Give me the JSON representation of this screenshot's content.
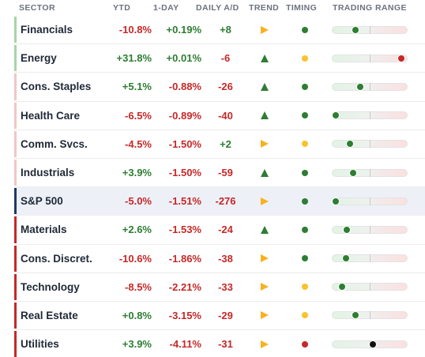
{
  "header": {
    "sector": "SECTOR",
    "ytd": "YTD",
    "one_day": "1-DAY",
    "daily_ad": "DAILY A/D",
    "trend": "TREND",
    "timing": "TIMING",
    "trading_range": "TRADING RANGE"
  },
  "colors": {
    "positive": "#2e7d32",
    "negative": "#c62828",
    "neutral_trend": "#f9b11f",
    "timing_green": "#2e7d32",
    "timing_yellow": "#f9c22e",
    "timing_red": "#c62828",
    "bar_green": "#a5d6a7",
    "bar_pink": "#f3c6c6",
    "bar_red": "#c62828",
    "bar_navy": "#1f3a5f"
  },
  "rows": [
    {
      "sector": "Financials",
      "ytd": "-10.8%",
      "ytd_dir": "neg",
      "day": "+0.19%",
      "day_dir": "pos",
      "ad": "+8",
      "ad_dir": "pos",
      "trend": "flat-right-arrow-icon",
      "timing": "green",
      "range_pos": 0.3,
      "range_color": "green",
      "bar": "green"
    },
    {
      "sector": "Energy",
      "ytd": "+31.8%",
      "ytd_dir": "pos",
      "day": "+0.01%",
      "day_dir": "pos",
      "ad": "-6",
      "ad_dir": "neg",
      "trend": "up-arrow-icon",
      "timing": "yellow",
      "range_pos": 0.91,
      "range_color": "red",
      "bar": "green"
    },
    {
      "sector": "Cons. Staples",
      "ytd": "+5.1%",
      "ytd_dir": "pos",
      "day": "-0.88%",
      "day_dir": "neg",
      "ad": "-26",
      "ad_dir": "neg",
      "trend": "up-arrow-icon",
      "timing": "green",
      "range_pos": 0.36,
      "range_color": "green",
      "bar": "pink"
    },
    {
      "sector": "Health Care",
      "ytd": "-6.5%",
      "ytd_dir": "neg",
      "day": "-0.89%",
      "day_dir": "neg",
      "ad": "-40",
      "ad_dir": "neg",
      "trend": "up-arrow-icon",
      "timing": "green",
      "range_pos": 0.03,
      "range_color": "green",
      "bar": "pink"
    },
    {
      "sector": "Comm. Svcs.",
      "ytd": "-4.5%",
      "ytd_dir": "neg",
      "day": "-1.50%",
      "day_dir": "neg",
      "ad": "+2",
      "ad_dir": "pos",
      "trend": "flat-right-arrow-icon",
      "timing": "yellow",
      "range_pos": 0.22,
      "range_color": "green",
      "bar": "pink"
    },
    {
      "sector": "Industrials",
      "ytd": "+3.9%",
      "ytd_dir": "pos",
      "day": "-1.50%",
      "day_dir": "neg",
      "ad": "-59",
      "ad_dir": "neg",
      "trend": "up-arrow-icon",
      "timing": "green",
      "range_pos": 0.27,
      "range_color": "green",
      "bar": "pink"
    },
    {
      "sector": "S&P 500",
      "ytd": "-5.0%",
      "ytd_dir": "neg",
      "day": "-1.51%",
      "day_dir": "neg",
      "ad": "-276",
      "ad_dir": "neg",
      "trend": "flat-right-arrow-icon",
      "timing": "green",
      "range_pos": 0.03,
      "range_color": "green",
      "bar": "navy",
      "highlight": true
    },
    {
      "sector": "Materials",
      "ytd": "+2.6%",
      "ytd_dir": "pos",
      "day": "-1.53%",
      "day_dir": "neg",
      "ad": "-24",
      "ad_dir": "neg",
      "trend": "up-arrow-icon",
      "timing": "green",
      "range_pos": 0.18,
      "range_color": "green",
      "bar": "red"
    },
    {
      "sector": "Cons. Discret.",
      "ytd": "-10.6%",
      "ytd_dir": "neg",
      "day": "-1.86%",
      "day_dir": "neg",
      "ad": "-38",
      "ad_dir": "neg",
      "trend": "flat-right-arrow-icon",
      "timing": "green",
      "range_pos": 0.17,
      "range_color": "green",
      "bar": "red"
    },
    {
      "sector": "Technology",
      "ytd": "-8.5%",
      "ytd_dir": "neg",
      "day": "-2.21%",
      "day_dir": "neg",
      "ad": "-33",
      "ad_dir": "neg",
      "trend": "flat-right-arrow-icon",
      "timing": "yellow",
      "range_pos": 0.12,
      "range_color": "green",
      "bar": "red"
    },
    {
      "sector": "Real Estate",
      "ytd": "+0.8%",
      "ytd_dir": "pos",
      "day": "-3.15%",
      "day_dir": "neg",
      "ad": "-29",
      "ad_dir": "neg",
      "trend": "flat-right-arrow-icon",
      "timing": "yellow",
      "range_pos": 0.3,
      "range_color": "green",
      "bar": "red"
    },
    {
      "sector": "Utilities",
      "ytd": "+3.9%",
      "ytd_dir": "pos",
      "day": "-4.11%",
      "day_dir": "neg",
      "ad": "-31",
      "ad_dir": "neg",
      "trend": "flat-right-arrow-icon",
      "timing": "red",
      "range_pos": 0.53,
      "range_color": "black",
      "bar": "red"
    }
  ]
}
